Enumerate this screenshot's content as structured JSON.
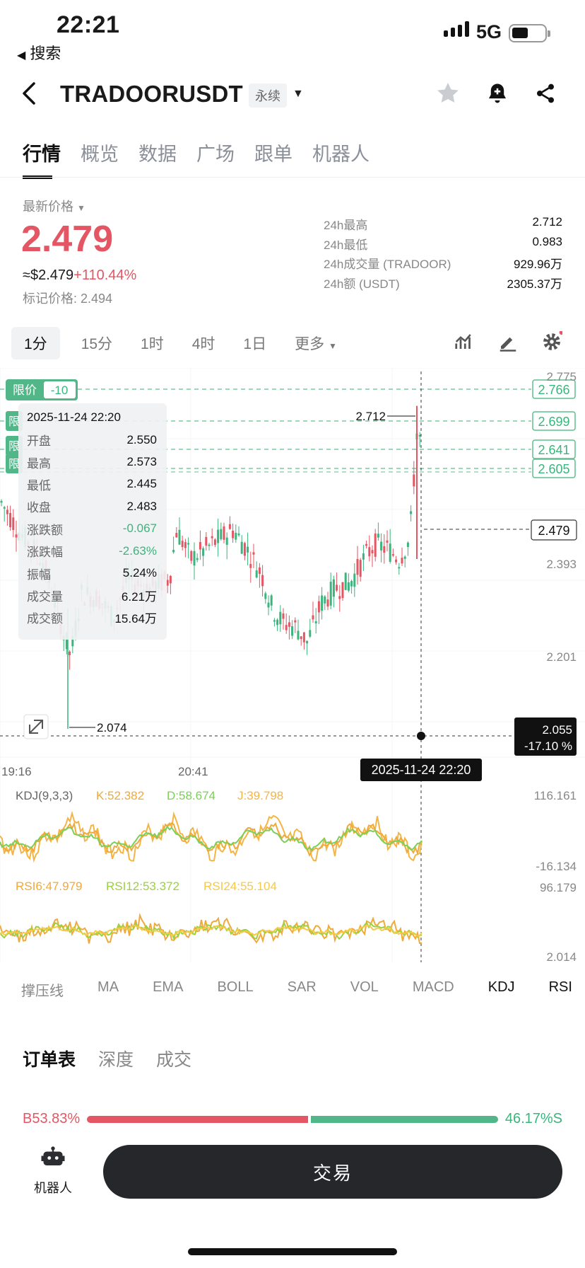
{
  "status_bar": {
    "time": "22:21",
    "back_app": "搜索",
    "network": "5G"
  },
  "header": {
    "symbol": "TRADOORUSDT",
    "contract_type": "永续"
  },
  "tabs": [
    {
      "label": "行情",
      "active": true
    },
    {
      "label": "概览"
    },
    {
      "label": "数据"
    },
    {
      "label": "广场"
    },
    {
      "label": "跟单"
    },
    {
      "label": "机器人"
    }
  ],
  "price": {
    "label": "最新价格",
    "last": "2.479",
    "usd": "≈$2.479",
    "change": "+110.44%",
    "mark": "标记价格: 2.494"
  },
  "stats": [
    {
      "label": "24h最高",
      "value": "2.712"
    },
    {
      "label": "24h最低",
      "value": "0.983"
    },
    {
      "label": "24h成交量 (TRADOOR)",
      "value": "929.96万"
    },
    {
      "label": "24h额 (USDT)",
      "value": "2305.37万"
    }
  ],
  "timeframes": [
    "1分",
    "15分",
    "1时",
    "4时",
    "1日"
  ],
  "timeframe_more": "更多",
  "chart": {
    "y_labels": [
      "2.775",
      "2.393",
      "2.201"
    ],
    "price_tags": [
      "2.766",
      "2.699",
      "2.641",
      "2.605"
    ],
    "current_tag": "2.479",
    "limit_label": "限价",
    "limit_value": "-10",
    "order_labels": [
      "限",
      "限",
      "限"
    ],
    "high_label": "2.712",
    "low_label": "2.074",
    "crosshair_price": "2.055",
    "crosshair_pct": "-17.10 %",
    "crosshair_time": "2025-11-24 22:20",
    "x_labels": [
      "19:16",
      "20:41"
    ],
    "colors": {
      "up": "#3bb47d",
      "down": "#e45663",
      "k": "#f0a93b",
      "d": "#7ccf58",
      "j": "#f3b545",
      "rsi6": "#f0a93b",
      "rsi12": "#9bd13f",
      "rsi24": "#f7c948"
    },
    "kdj": {
      "title": "KDJ(9,3,3)",
      "k": "K:52.382",
      "d": "D:58.674",
      "j": "J:39.798",
      "max": "116.161",
      "min": "-16.134"
    },
    "rsi": {
      "r6": "RSI6:47.979",
      "r12": "RSI12:53.372",
      "r24": "RSI24:55.104",
      "max": "96.179",
      "min": "2.014"
    }
  },
  "info_box": {
    "datetime": "2025-11-24 22:20",
    "rows": [
      {
        "k": "开盘",
        "v": "2.550"
      },
      {
        "k": "最高",
        "v": "2.573"
      },
      {
        "k": "最低",
        "v": "2.445"
      },
      {
        "k": "收盘",
        "v": "2.483"
      },
      {
        "k": "涨跌额",
        "v": "-0.067",
        "neg": true
      },
      {
        "k": "涨跌幅",
        "v": "-2.63%",
        "neg": true
      },
      {
        "k": "振幅",
        "v": "5.24%"
      },
      {
        "k": "成交量",
        "v": "6.21万"
      },
      {
        "k": "成交额",
        "v": "15.64万"
      }
    ]
  },
  "indicators": [
    "撑压线",
    "MA",
    "EMA",
    "BOLL",
    "SAR",
    "VOL",
    "MACD",
    "KDJ",
    "RSI"
  ],
  "orderbook_tabs": [
    "订单表",
    "深度",
    "成交"
  ],
  "ratio": {
    "buy": "B53.83%",
    "sell": "46.17%S",
    "buy_share": 0.5383
  },
  "bottom": {
    "robot_label": "机器人",
    "trade_button": "交易"
  }
}
